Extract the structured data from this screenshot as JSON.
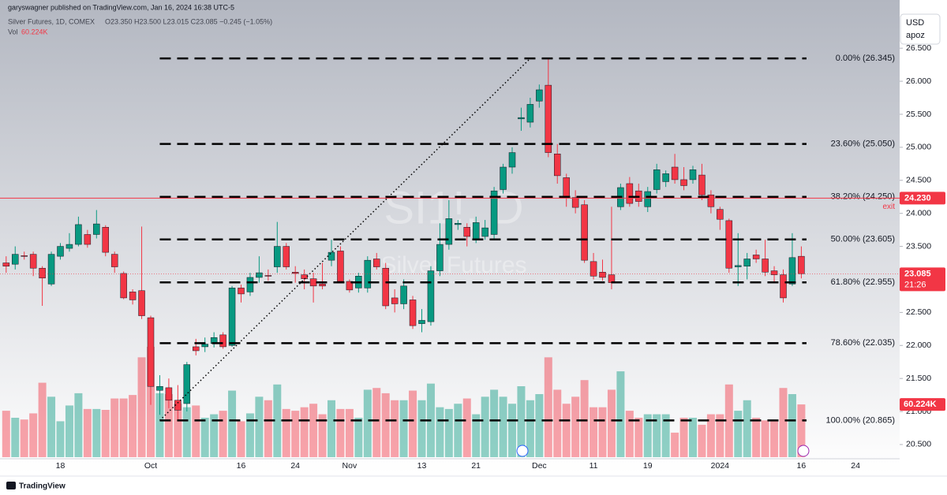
{
  "header": {
    "author": "garyswagner published on TradingView.com, Jan 16, 2024 16:38 UTC-5",
    "symbol": "Silver Futures, 1D, COMEX",
    "ohlc": "O23.350 H23.500 L23.015 C23.085 −0.245 (−1.05%)",
    "vol": "Vol"
  },
  "currency": {
    "name": "USD",
    "sub": "apoz"
  },
  "watermark": {
    "symbol": "SI1!, D",
    "name": "Silver Futures"
  },
  "footer": "TradingView",
  "chart_data": {
    "type": "candlestick",
    "categories": [
      null,
      null,
      null,
      null,
      null,
      null,
      "18",
      null,
      null,
      null,
      null,
      null,
      null,
      null,
      null,
      null,
      "Oct",
      null,
      null,
      null,
      null,
      null,
      null,
      null,
      null,
      null,
      "16",
      null,
      null,
      null,
      null,
      null,
      "24",
      null,
      null,
      null,
      null,
      null,
      "Nov",
      null,
      null,
      null,
      null,
      null,
      null,
      null,
      "13",
      null,
      null,
      null,
      null,
      null,
      "21",
      null,
      null,
      null,
      null,
      null,
      null,
      "Dec",
      null,
      null,
      null,
      null,
      null,
      "11",
      null,
      null,
      null,
      null,
      null,
      "19",
      null,
      null,
      null,
      null,
      null,
      null,
      null,
      "2024",
      null,
      null,
      null,
      null,
      null,
      null,
      null,
      null,
      "16",
      null,
      null,
      null,
      null,
      null,
      "24"
    ],
    "open": [
      23.25,
      23.23,
      23.36,
      23.38,
      23.17,
      22.93,
      23.35,
      23.47,
      23.53,
      23.68,
      23.68,
      23.79,
      23.38,
      23.09,
      22.81,
      22.83,
      22.42,
      21.32,
      21.36,
      21.17,
      21.12,
      21.98,
      21.98,
      22.03,
      22.16,
      22.0,
      22.87,
      22.81,
      23.03,
      23.06,
      23.19,
      23.5,
      23.11,
      23.07,
      23.01,
      22.93,
      23.29,
      23.43,
      22.97,
      22.87,
      22.87,
      23.31,
      23.17,
      22.72,
      22.63,
      22.69,
      22.33,
      22.36,
      23.13,
      23.53,
      23.83,
      23.79,
      23.61,
      23.65,
      23.68,
      24.36,
      24.7,
      25.43,
      25.38,
      25.7,
      25.94,
      24.9,
      24.54,
      24.24,
      24.13,
      23.27,
      23.11,
      23.07,
      24.1,
      24.45,
      24.34,
      24.1,
      24.36,
      24.48,
      24.7,
      24.51,
      24.51,
      24.58,
      24.28,
      24.06,
      23.89,
      23.19,
      23.2,
      23.37,
      23.31,
      23.13,
      23.07,
      22.93,
      23.35,
      null,
      null,
      null,
      null,
      null,
      null
    ],
    "high": [
      23.35,
      23.5,
      23.42,
      23.42,
      23.2,
      23.42,
      23.55,
      23.7,
      23.95,
      23.75,
      24.05,
      23.82,
      23.42,
      23.12,
      22.85,
      23.8,
      22.45,
      21.55,
      21.5,
      21.4,
      21.75,
      22.1,
      22.12,
      22.2,
      22.2,
      22.9,
      22.92,
      23.1,
      23.35,
      23.15,
      23.87,
      23.55,
      23.2,
      23.15,
      23.1,
      23.25,
      23.6,
      23.5,
      23.0,
      23.1,
      23.35,
      23.4,
      23.25,
      22.85,
      23.0,
      22.75,
      22.55,
      23.2,
      23.85,
      24.2,
      23.9,
      23.85,
      23.95,
      23.9,
      24.4,
      24.75,
      25.0,
      25.6,
      25.75,
      25.95,
      26.345,
      25.05,
      24.6,
      24.35,
      24.2,
      23.4,
      23.3,
      24.1,
      24.45,
      24.55,
      24.45,
      24.4,
      24.75,
      24.65,
      24.9,
      24.7,
      24.72,
      24.75,
      24.35,
      24.1,
      23.92,
      23.7,
      23.4,
      23.45,
      23.6,
      23.2,
      23.15,
      23.7,
      23.5,
      null,
      null,
      null,
      null,
      null,
      null
    ],
    "low": [
      23.1,
      23.15,
      23.3,
      23.05,
      22.6,
      22.9,
      23.3,
      23.42,
      23.5,
      23.48,
      23.62,
      23.35,
      23.1,
      22.7,
      22.62,
      22.4,
      21.1,
      20.95,
      21.05,
      20.865,
      21.0,
      21.85,
      21.9,
      21.97,
      21.95,
      21.98,
      22.65,
      22.75,
      22.95,
      22.98,
      23.1,
      23.15,
      22.95,
      22.85,
      22.65,
      22.85,
      23.2,
      22.95,
      22.8,
      22.8,
      22.8,
      23.15,
      22.55,
      22.5,
      22.55,
      22.25,
      22.2,
      22.3,
      23.05,
      23.45,
      23.75,
      23.5,
      23.55,
      23.6,
      23.6,
      24.3,
      24.6,
      25.25,
      25.3,
      25.6,
      24.85,
      24.45,
      24.1,
      24.0,
      23.25,
      23.0,
      22.98,
      22.85,
      24.05,
      24.1,
      24.1,
      24.02,
      24.3,
      24.4,
      24.45,
      24.35,
      24.45,
      24.2,
      24.0,
      23.75,
      23.1,
      22.9,
      23.0,
      23.25,
      23.05,
      22.95,
      22.65,
      22.9,
      23.015,
      null,
      null,
      null,
      null,
      null,
      null
    ],
    "close": [
      23.2,
      23.38,
      23.35,
      23.17,
      23.02,
      23.38,
      23.5,
      23.53,
      23.83,
      23.53,
      23.84,
      23.41,
      23.19,
      22.72,
      22.69,
      22.45,
      21.38,
      21.38,
      21.17,
      21.02,
      21.71,
      21.92,
      22.02,
      22.12,
      21.98,
      22.87,
      22.78,
      23.03,
      23.1,
      23.05,
      23.5,
      23.19,
      23.09,
      23.01,
      22.9,
      22.9,
      23.41,
      22.97,
      22.84,
      23.05,
      23.29,
      23.19,
      22.6,
      22.63,
      22.9,
      22.3,
      22.38,
      23.13,
      23.53,
      23.92,
      23.85,
      23.65,
      23.86,
      23.78,
      24.34,
      24.7,
      24.92,
      25.45,
      25.65,
      25.87,
      24.92,
      24.57,
      24.24,
      24.09,
      23.29,
      23.05,
      23.03,
      22.95,
      24.39,
      24.15,
      24.18,
      24.33,
      24.66,
      24.6,
      24.51,
      24.42,
      24.66,
      24.28,
      24.1,
      23.91,
      23.17,
      23.21,
      23.31,
      23.31,
      23.11,
      23.07,
      22.72,
      23.33,
      23.085,
      null,
      null,
      null,
      null,
      null,
      null
    ],
    "volume": [
      53,
      45,
      43,
      50,
      85,
      69,
      41,
      59,
      73,
      55,
      55,
      54,
      67,
      67,
      71,
      114,
      126,
      73,
      72,
      61,
      57,
      59,
      45,
      49,
      53,
      76,
      41,
      50,
      69,
      65,
      83,
      55,
      53,
      57,
      61,
      49,
      65,
      55,
      55,
      45,
      77,
      79,
      73,
      65,
      65,
      76,
      65,
      84,
      57,
      55,
      61,
      67,
      49,
      69,
      77,
      69,
      61,
      81,
      65,
      72,
      114,
      77,
      61,
      69,
      88,
      57,
      57,
      77,
      98,
      53,
      45,
      49,
      49,
      49,
      28,
      45,
      45,
      37,
      49,
      49,
      83,
      53,
      65,
      45,
      42,
      42,
      79,
      72,
      60.224,
      null,
      null,
      null,
      null,
      null,
      null
    ],
    "volume_label": "60.224K",
    "up_color": "#089981",
    "down_color": "#f23645",
    "ylim": [
      20.07,
      27.23
    ],
    "yticks": [
      {
        "value": 20.5,
        "label": "20.500"
      },
      {
        "value": 21,
        "label": "21.000"
      },
      {
        "value": 21.5,
        "label": "21.500"
      },
      {
        "value": 22,
        "label": "22.000"
      },
      {
        "value": 22.5,
        "label": "22.500"
      },
      {
        "value": 23,
        "label": "23.000"
      },
      {
        "value": 23.5,
        "label": "23.500"
      },
      {
        "value": 24,
        "label": "24.000"
      },
      {
        "value": 24.5,
        "label": "24.500"
      },
      {
        "value": 25,
        "label": "25.000"
      },
      {
        "value": 25.5,
        "label": "25.500"
      },
      {
        "value": 26,
        "label": "26.000"
      },
      {
        "value": 26.5,
        "label": "26.500"
      }
    ],
    "fib_levels": [
      {
        "value": 26.345,
        "label": "0.00% (26.345)"
      },
      {
        "value": 25.05,
        "label": "23.60% (25.050)"
      },
      {
        "value": 24.25,
        "label": "38.20% (24.250)"
      },
      {
        "value": 23.605,
        "label": "50.00% (23.605)"
      },
      {
        "value": 22.955,
        "label": "61.80% (22.955)"
      },
      {
        "value": 22.035,
        "label": "78.60% (22.035)"
      },
      {
        "value": 20.865,
        "label": "100.00% (20.865)"
      }
    ],
    "exit_line": {
      "value": 24.23,
      "label": "24.230",
      "note": "exit"
    },
    "last_price": {
      "value": 23.085,
      "label": "23.085",
      "countdown": "21:26"
    }
  }
}
